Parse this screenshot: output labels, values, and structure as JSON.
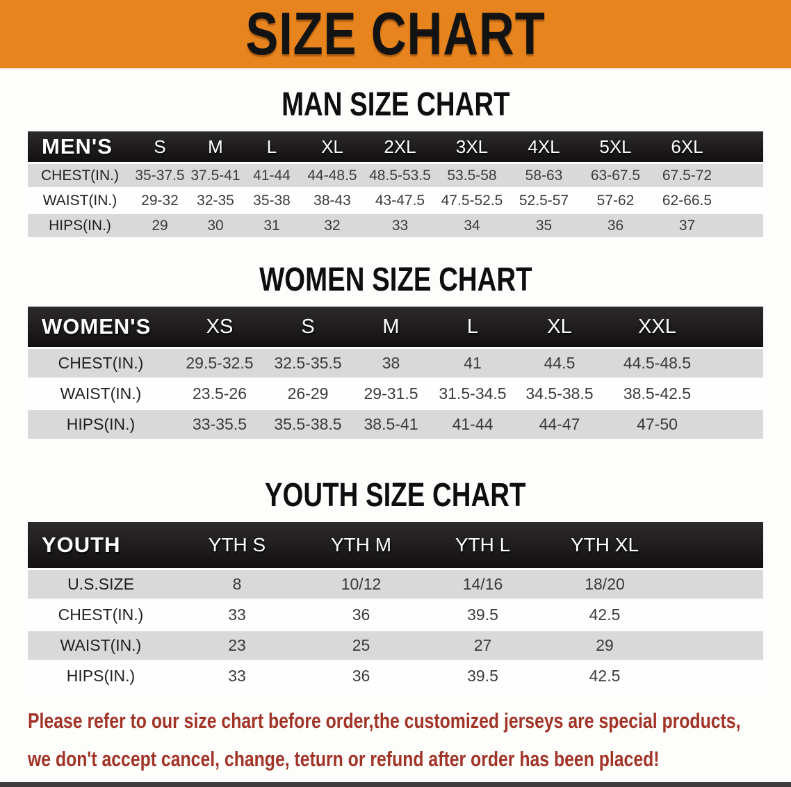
{
  "banner": {
    "title": "SIZE CHART"
  },
  "colors": {
    "banner_bg": "#E8841E",
    "header_bar": "#1A1A1A",
    "row_gray": "#D9D9D9",
    "row_white": "#FEFEFE",
    "disclaimer_red": "#A23427"
  },
  "sections": [
    {
      "heading": "MAN SIZE CHART",
      "table": {
        "header": [
          "MEN'S",
          "S",
          "M",
          "L",
          "XL",
          "2XL",
          "3XL",
          "4XL",
          "5XL",
          "6XL"
        ],
        "rows": [
          {
            "label": "CHEST(IN.)",
            "values": [
              "35-37.5",
              "37.5-41",
              "41-44",
              "44-48.5",
              "48.5-53.5",
              "53.5-58",
              "58-63",
              "63-67.5",
              "67.5-72"
            ]
          },
          {
            "label": "WAIST(IN.)",
            "values": [
              "29-32",
              "32-35",
              "35-38",
              "38-43",
              "43-47.5",
              "47.5-52.5",
              "52.5-57",
              "57-62",
              "62-66.5"
            ]
          },
          {
            "label": "HIPS(IN.)",
            "values": [
              "29",
              "30",
              "31",
              "32",
              "33",
              "34",
              "35",
              "36",
              "37"
            ]
          }
        ]
      }
    },
    {
      "heading": "WOMEN SIZE CHART",
      "table": {
        "header": [
          "WOMEN'S",
          "XS",
          "S",
          "M",
          "L",
          "XL",
          "XXL"
        ],
        "rows": [
          {
            "label": "CHEST(IN.)",
            "values": [
              "29.5-32.5",
              "32.5-35.5",
              "38",
              "41",
              "44.5",
              "44.5-48.5"
            ]
          },
          {
            "label": "WAIST(IN.)",
            "values": [
              "23.5-26",
              "26-29",
              "29-31.5",
              "31.5-34.5",
              "34.5-38.5",
              "38.5-42.5"
            ]
          },
          {
            "label": "HIPS(IN.)",
            "values": [
              "33-35.5",
              "35.5-38.5",
              "38.5-41",
              "41-44",
              "44-47",
              "47-50"
            ]
          }
        ]
      }
    },
    {
      "heading": "YOUTH SIZE CHART",
      "table": {
        "header": [
          "YOUTH",
          "YTH S",
          "YTH M",
          "YTH L",
          "YTH XL"
        ],
        "rows": [
          {
            "label": "U.S.SIZE",
            "values": [
              "8",
              "10/12",
              "14/16",
              "18/20"
            ]
          },
          {
            "label": "CHEST(IN.)",
            "values": [
              "33",
              "36",
              "39.5",
              "42.5"
            ]
          },
          {
            "label": "WAIST(IN.)",
            "values": [
              "23",
              "25",
              "27",
              "29"
            ]
          },
          {
            "label": "HIPS(IN.)",
            "values": [
              "33",
              "36",
              "39.5",
              "42.5"
            ]
          }
        ]
      }
    }
  ],
  "disclaimer": {
    "line1": "Please refer to our size chart before order,the customized jerseys are special products,",
    "line2": "we don't accept cancel, change, teturn or refund after order has been placed!"
  }
}
